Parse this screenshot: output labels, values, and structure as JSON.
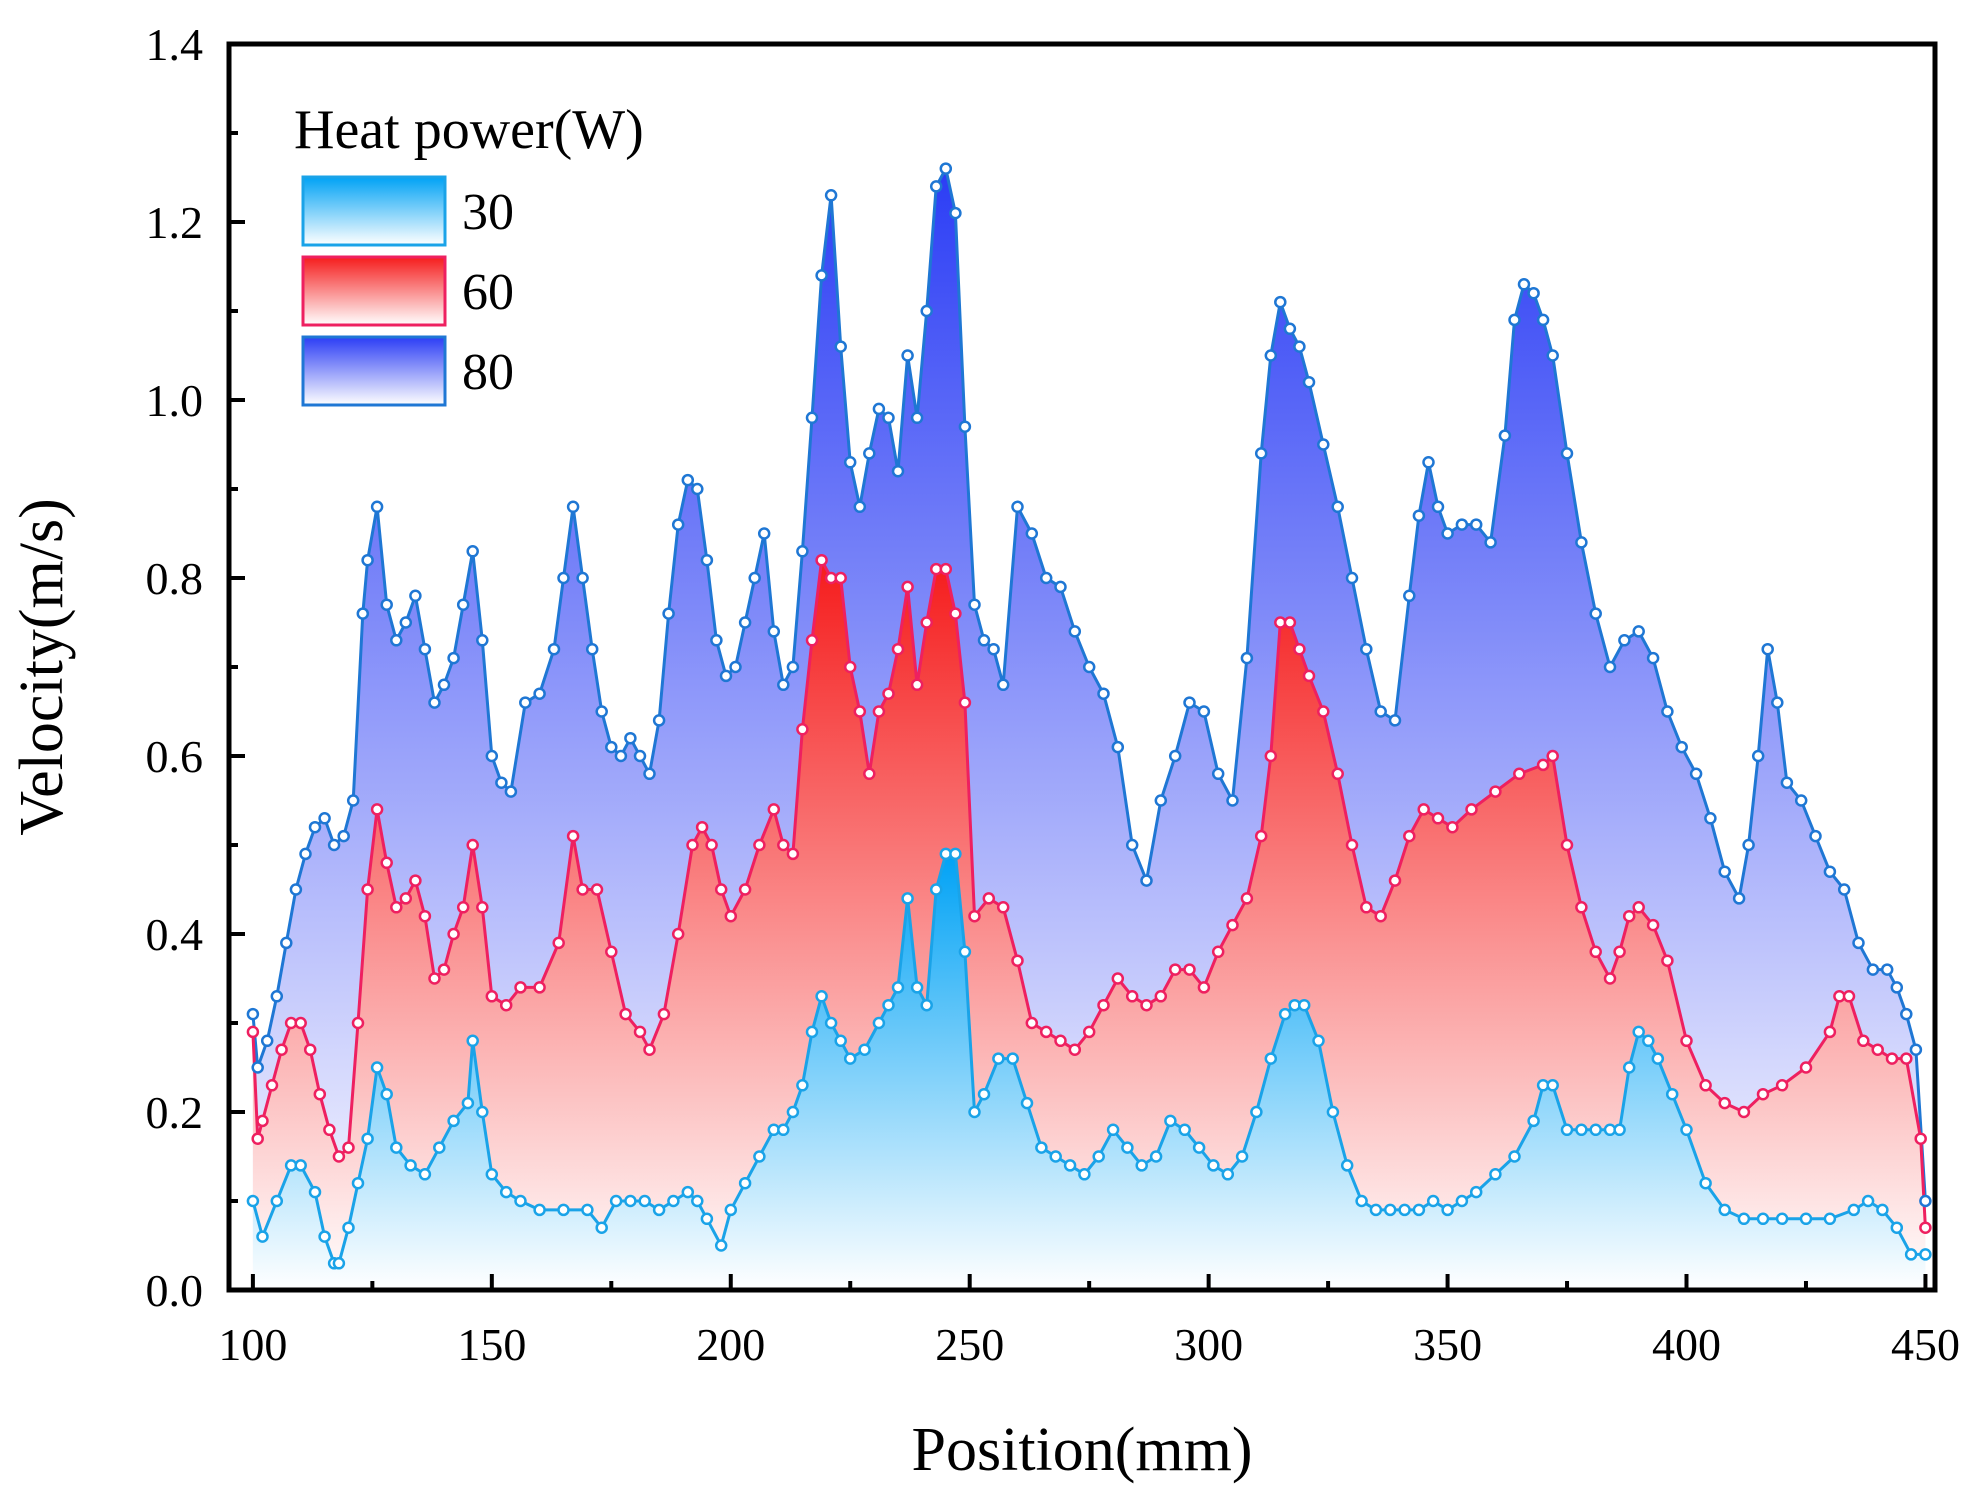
{
  "chart_data": {
    "type": "area",
    "title": "",
    "xlabel": "Position(mm)",
    "ylabel": "Velocity(m/s)",
    "xlim": [
      95,
      452
    ],
    "ylim": [
      0,
      1.4
    ],
    "xticks": [
      100,
      150,
      200,
      250,
      300,
      350,
      400,
      450
    ],
    "yticks": [
      0.0,
      0.2,
      0.4,
      0.6,
      0.8,
      1.0,
      1.2,
      1.4
    ],
    "xtick_labels": [
      "100",
      "150",
      "200",
      "250",
      "300",
      "350",
      "400",
      "450"
    ],
    "ytick_labels": [
      "0.0",
      "0.2",
      "0.4",
      "0.6",
      "0.8",
      "1.0",
      "1.2",
      "1.4"
    ],
    "grid": false,
    "legend_position": "top-left",
    "legend_title": "Heat power(W)",
    "series": [
      {
        "name": "30",
        "line_color": "#1aa3e8",
        "fill_top": "#00a2f5",
        "fill_bottom": "#ffffff",
        "x": [
          100,
          102,
          105,
          108,
          110,
          113,
          115,
          117,
          118,
          120,
          122,
          124,
          126,
          128,
          130,
          133,
          136,
          139,
          142,
          145,
          146,
          148,
          150,
          153,
          156,
          160,
          165,
          170,
          173,
          176,
          179,
          182,
          185,
          188,
          191,
          193,
          195,
          198,
          200,
          203,
          206,
          209,
          211,
          213,
          215,
          217,
          219,
          221,
          223,
          225,
          228,
          231,
          233,
          235,
          237,
          239,
          241,
          243,
          245,
          247,
          249,
          251,
          253,
          256,
          259,
          262,
          265,
          268,
          271,
          274,
          277,
          280,
          283,
          286,
          289,
          292,
          295,
          298,
          301,
          304,
          307,
          310,
          313,
          316,
          318,
          320,
          323,
          326,
          329,
          332,
          335,
          338,
          341,
          344,
          347,
          350,
          353,
          356,
          360,
          364,
          368,
          370,
          372,
          375,
          378,
          381,
          384,
          386,
          388,
          390,
          392,
          394,
          397,
          400,
          404,
          408,
          412,
          416,
          420,
          425,
          430,
          435,
          438,
          441,
          444,
          447,
          450
        ],
        "y": [
          0.1,
          0.06,
          0.1,
          0.14,
          0.14,
          0.11,
          0.06,
          0.03,
          0.03,
          0.07,
          0.12,
          0.17,
          0.25,
          0.22,
          0.16,
          0.14,
          0.13,
          0.16,
          0.19,
          0.21,
          0.28,
          0.2,
          0.13,
          0.11,
          0.1,
          0.09,
          0.09,
          0.09,
          0.07,
          0.1,
          0.1,
          0.1,
          0.09,
          0.1,
          0.11,
          0.1,
          0.08,
          0.05,
          0.09,
          0.12,
          0.15,
          0.18,
          0.18,
          0.2,
          0.23,
          0.29,
          0.33,
          0.3,
          0.28,
          0.26,
          0.27,
          0.3,
          0.32,
          0.34,
          0.44,
          0.34,
          0.32,
          0.45,
          0.49,
          0.49,
          0.38,
          0.2,
          0.22,
          0.26,
          0.26,
          0.21,
          0.16,
          0.15,
          0.14,
          0.13,
          0.15,
          0.18,
          0.16,
          0.14,
          0.15,
          0.19,
          0.18,
          0.16,
          0.14,
          0.13,
          0.15,
          0.2,
          0.26,
          0.31,
          0.32,
          0.32,
          0.28,
          0.2,
          0.14,
          0.1,
          0.09,
          0.09,
          0.09,
          0.09,
          0.1,
          0.09,
          0.1,
          0.11,
          0.13,
          0.15,
          0.19,
          0.23,
          0.23,
          0.18,
          0.18,
          0.18,
          0.18,
          0.18,
          0.25,
          0.29,
          0.28,
          0.26,
          0.22,
          0.18,
          0.12,
          0.09,
          0.08,
          0.08,
          0.08,
          0.08,
          0.08,
          0.09,
          0.1,
          0.09,
          0.07,
          0.04,
          0.04
        ]
      },
      {
        "name": "60",
        "line_color": "#ee2060",
        "fill_top": "#f51c1c",
        "fill_bottom": "#ffffff",
        "x": [
          100,
          101,
          102,
          104,
          106,
          108,
          110,
          112,
          114,
          116,
          118,
          120,
          122,
          124,
          126,
          128,
          130,
          132,
          134,
          136,
          138,
          140,
          142,
          144,
          146,
          148,
          150,
          153,
          156,
          160,
          164,
          167,
          169,
          172,
          175,
          178,
          181,
          183,
          186,
          189,
          192,
          194,
          196,
          198,
          200,
          203,
          206,
          209,
          211,
          213,
          215,
          217,
          219,
          221,
          223,
          225,
          227,
          229,
          231,
          233,
          235,
          237,
          239,
          241,
          243,
          245,
          247,
          249,
          251,
          254,
          257,
          260,
          263,
          266,
          269,
          272,
          275,
          278,
          281,
          284,
          287,
          290,
          293,
          296,
          299,
          302,
          305,
          308,
          311,
          313,
          315,
          317,
          319,
          321,
          324,
          327,
          330,
          333,
          336,
          339,
          342,
          345,
          348,
          351,
          355,
          360,
          365,
          370,
          372,
          375,
          378,
          381,
          384,
          386,
          388,
          390,
          393,
          396,
          400,
          404,
          408,
          412,
          416,
          420,
          425,
          430,
          432,
          434,
          437,
          440,
          443,
          446,
          449,
          450
        ],
        "y": [
          0.29,
          0.17,
          0.19,
          0.23,
          0.27,
          0.3,
          0.3,
          0.27,
          0.22,
          0.18,
          0.15,
          0.16,
          0.3,
          0.45,
          0.54,
          0.48,
          0.43,
          0.44,
          0.46,
          0.42,
          0.35,
          0.36,
          0.4,
          0.43,
          0.5,
          0.43,
          0.33,
          0.32,
          0.34,
          0.34,
          0.39,
          0.51,
          0.45,
          0.45,
          0.38,
          0.31,
          0.29,
          0.27,
          0.31,
          0.4,
          0.5,
          0.52,
          0.5,
          0.45,
          0.42,
          0.45,
          0.5,
          0.54,
          0.5,
          0.49,
          0.63,
          0.73,
          0.82,
          0.8,
          0.8,
          0.7,
          0.65,
          0.58,
          0.65,
          0.67,
          0.72,
          0.79,
          0.68,
          0.75,
          0.81,
          0.81,
          0.76,
          0.66,
          0.42,
          0.44,
          0.43,
          0.37,
          0.3,
          0.29,
          0.28,
          0.27,
          0.29,
          0.32,
          0.35,
          0.33,
          0.32,
          0.33,
          0.36,
          0.36,
          0.34,
          0.38,
          0.41,
          0.44,
          0.51,
          0.6,
          0.75,
          0.75,
          0.72,
          0.69,
          0.65,
          0.58,
          0.5,
          0.43,
          0.42,
          0.46,
          0.51,
          0.54,
          0.53,
          0.52,
          0.54,
          0.56,
          0.58,
          0.59,
          0.6,
          0.5,
          0.43,
          0.38,
          0.35,
          0.38,
          0.42,
          0.43,
          0.41,
          0.37,
          0.28,
          0.23,
          0.21,
          0.2,
          0.22,
          0.23,
          0.25,
          0.29,
          0.33,
          0.33,
          0.28,
          0.27,
          0.26,
          0.26,
          0.17,
          0.07
        ]
      },
      {
        "name": "80",
        "line_color": "#1f77d4",
        "fill_top": "#2b3df5",
        "fill_bottom": "#ffffff",
        "x": [
          100,
          101,
          103,
          105,
          107,
          109,
          111,
          113,
          115,
          117,
          119,
          121,
          123,
          124,
          126,
          128,
          130,
          132,
          134,
          136,
          138,
          140,
          142,
          144,
          146,
          148,
          150,
          152,
          154,
          157,
          160,
          163,
          165,
          167,
          169,
          171,
          173,
          175,
          177,
          179,
          181,
          183,
          185,
          187,
          189,
          191,
          193,
          195,
          197,
          199,
          201,
          203,
          205,
          207,
          209,
          211,
          213,
          215,
          217,
          219,
          221,
          223,
          225,
          227,
          229,
          231,
          233,
          235,
          237,
          239,
          241,
          243,
          245,
          247,
          249,
          251,
          253,
          255,
          257,
          260,
          263,
          266,
          269,
          272,
          275,
          278,
          281,
          284,
          287,
          290,
          293,
          296,
          299,
          302,
          305,
          308,
          311,
          313,
          315,
          317,
          319,
          321,
          324,
          327,
          330,
          333,
          336,
          339,
          342,
          344,
          346,
          348,
          350,
          353,
          356,
          359,
          362,
          364,
          366,
          368,
          370,
          372,
          375,
          378,
          381,
          384,
          387,
          390,
          393,
          396,
          399,
          402,
          405,
          408,
          411,
          413,
          415,
          417,
          419,
          421,
          424,
          427,
          430,
          433,
          436,
          439,
          442,
          444,
          446,
          448,
          450
        ],
        "y": [
          0.31,
          0.25,
          0.28,
          0.33,
          0.39,
          0.45,
          0.49,
          0.52,
          0.53,
          0.5,
          0.51,
          0.55,
          0.76,
          0.82,
          0.88,
          0.77,
          0.73,
          0.75,
          0.78,
          0.72,
          0.66,
          0.68,
          0.71,
          0.77,
          0.83,
          0.73,
          0.6,
          0.57,
          0.56,
          0.66,
          0.67,
          0.72,
          0.8,
          0.88,
          0.8,
          0.72,
          0.65,
          0.61,
          0.6,
          0.62,
          0.6,
          0.58,
          0.64,
          0.76,
          0.86,
          0.91,
          0.9,
          0.82,
          0.73,
          0.69,
          0.7,
          0.75,
          0.8,
          0.85,
          0.74,
          0.68,
          0.7,
          0.83,
          0.98,
          1.14,
          1.23,
          1.06,
          0.93,
          0.88,
          0.94,
          0.99,
          0.98,
          0.92,
          1.05,
          0.98,
          1.1,
          1.24,
          1.26,
          1.21,
          0.97,
          0.77,
          0.73,
          0.72,
          0.68,
          0.88,
          0.85,
          0.8,
          0.79,
          0.74,
          0.7,
          0.67,
          0.61,
          0.5,
          0.46,
          0.55,
          0.6,
          0.66,
          0.65,
          0.58,
          0.55,
          0.71,
          0.94,
          1.05,
          1.11,
          1.08,
          1.06,
          1.02,
          0.95,
          0.88,
          0.8,
          0.72,
          0.65,
          0.64,
          0.78,
          0.87,
          0.93,
          0.88,
          0.85,
          0.86,
          0.86,
          0.84,
          0.96,
          1.09,
          1.13,
          1.12,
          1.09,
          1.05,
          0.94,
          0.84,
          0.76,
          0.7,
          0.73,
          0.74,
          0.71,
          0.65,
          0.61,
          0.58,
          0.53,
          0.47,
          0.44,
          0.5,
          0.6,
          0.72,
          0.66,
          0.57,
          0.55,
          0.51,
          0.47,
          0.45,
          0.39,
          0.36,
          0.36,
          0.34,
          0.31,
          0.27,
          0.1
        ]
      }
    ]
  }
}
